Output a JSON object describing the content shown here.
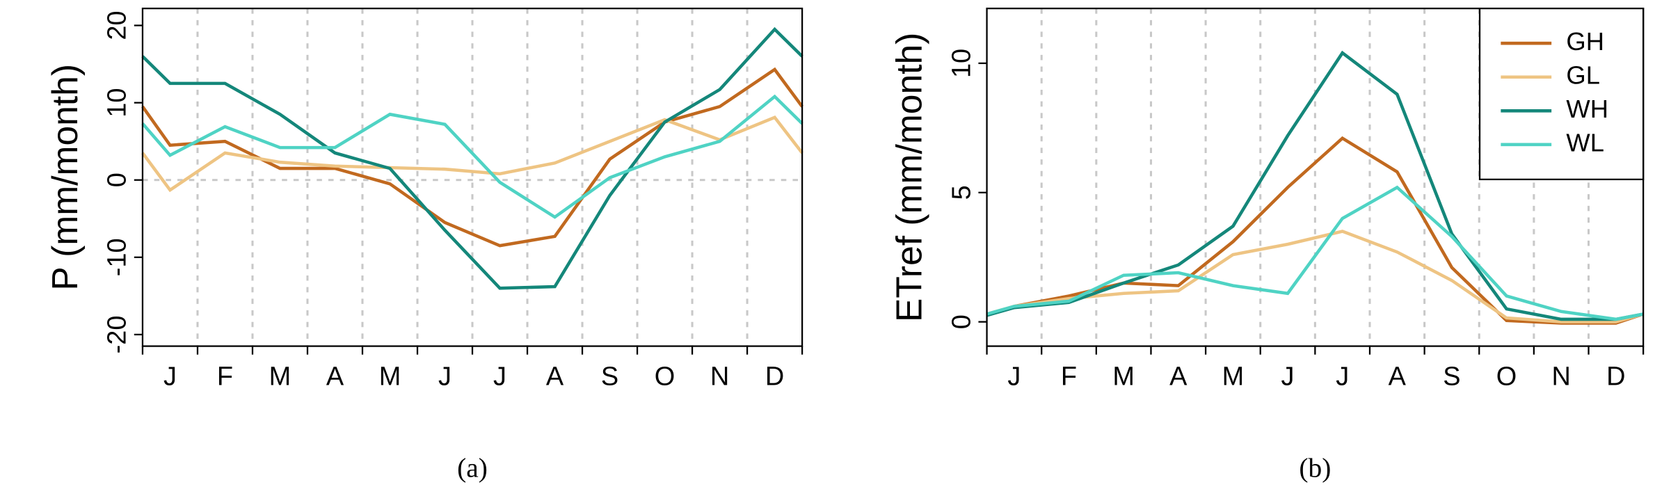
{
  "chart_data": [
    {
      "type": "line",
      "caption": "(a)",
      "ylabel": "P (mm/month)",
      "categories": [
        "J",
        "F",
        "M",
        "A",
        "M",
        "J",
        "J",
        "A",
        "S",
        "O",
        "N",
        "D"
      ],
      "x": [
        0,
        0.5,
        1.5,
        2.5,
        3.5,
        4.5,
        5.5,
        6.5,
        7.5,
        8.5,
        9.5,
        10.5,
        11.5,
        12
      ],
      "xlim": [
        0,
        12
      ],
      "ylim": [
        -21.5,
        22.2
      ],
      "yticks": [
        -20,
        -10,
        0,
        10,
        20
      ],
      "grid": true,
      "series": [
        {
          "color": "#c1691f",
          "values": [
            9.5,
            4.5,
            5,
            1.5,
            1.5,
            -0.5,
            -5.5,
            -8.5,
            -7.3,
            2.7,
            7.5,
            9.5,
            14.3,
            9.5
          ]
        },
        {
          "color": "#eec483",
          "values": [
            3.5,
            -1.3,
            3.5,
            2.3,
            1.8,
            1.6,
            1.4,
            0.8,
            2.2,
            5,
            7.8,
            5.2,
            8.1,
            3.5
          ]
        },
        {
          "color": "#14877a",
          "values": [
            16,
            12.5,
            12.5,
            8.5,
            3.5,
            1.5,
            -6.5,
            -14,
            -13.8,
            -2,
            7.5,
            11.7,
            19.5,
            16
          ]
        },
        {
          "color": "#4fd3c4",
          "values": [
            7.3,
            3.2,
            6.9,
            4.2,
            4.2,
            8.5,
            7.2,
            -0.3,
            -4.8,
            0.3,
            3,
            5,
            10.8,
            7.3
          ]
        }
      ]
    },
    {
      "type": "line",
      "caption": "(b)",
      "ylabel": "ETref (mm/month)",
      "categories": [
        "J",
        "F",
        "M",
        "A",
        "M",
        "J",
        "J",
        "A",
        "S",
        "O",
        "N",
        "D"
      ],
      "x": [
        0,
        0.5,
        1.5,
        2.5,
        3.5,
        4.5,
        5.5,
        6.5,
        7.5,
        8.5,
        9.5,
        10.5,
        11.5,
        12
      ],
      "xlim": [
        0,
        12
      ],
      "ylim": [
        -0.94,
        12.12
      ],
      "yticks": [
        0,
        5,
        10
      ],
      "grid": true,
      "legend": "top-right",
      "series": [
        {
          "name": "GH",
          "color": "#c1691f",
          "values": [
            0.25,
            0.6,
            1.0,
            1.5,
            1.4,
            3.1,
            5.2,
            7.1,
            5.8,
            2.1,
            0.05,
            -0.05,
            -0.05,
            0.3
          ]
        },
        {
          "name": "GL",
          "color": "#eec483",
          "values": [
            0.3,
            0.6,
            0.9,
            1.1,
            1.2,
            2.6,
            3.0,
            3.5,
            2.7,
            1.6,
            0.15,
            0.0,
            0.0,
            0.3
          ]
        },
        {
          "name": "WH",
          "color": "#14877a",
          "values": [
            0.25,
            0.55,
            0.75,
            1.5,
            2.2,
            3.7,
            7.2,
            10.4,
            8.8,
            3.4,
            0.5,
            0.1,
            0.1,
            0.3
          ]
        },
        {
          "name": "WL",
          "color": "#4fd3c4",
          "values": [
            0.3,
            0.6,
            0.8,
            1.8,
            1.9,
            1.4,
            1.1,
            4.0,
            5.2,
            3.3,
            1.0,
            0.4,
            0.1,
            0.3
          ]
        }
      ]
    }
  ]
}
